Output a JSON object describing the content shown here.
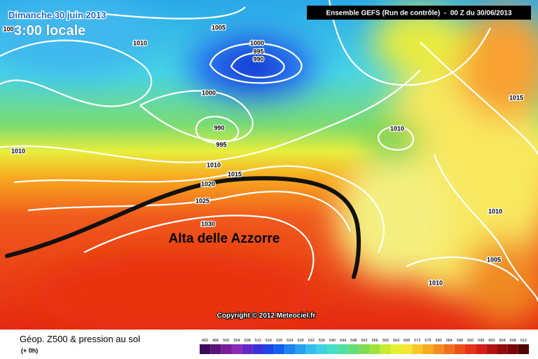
{
  "header": {
    "date": "Dimanche 30 juin 2013",
    "time": "3:00 locale",
    "model": "Ensemble GEFS (Run de contrôle)  -  00 Z du 30/06/2013"
  },
  "isobars": [
    "100",
    "1005",
    "1010",
    "1000",
    "995",
    "990",
    "1000",
    "990",
    "995",
    "1010",
    "1010",
    "1010",
    "1015",
    "1020",
    "1025",
    "1030",
    "1010",
    "1015",
    "1010",
    "1005"
  ],
  "annotation": "Alta delle Azzorre",
  "copyright": "Copyright © 2012 Meteociel.fr",
  "footer": {
    "title": "Géop. Z500 & pression au sol",
    "step": "(+ 0h)"
  },
  "scale": [
    "492",
    "496",
    "500",
    "504",
    "508",
    "512",
    "516",
    "520",
    "524",
    "528",
    "532",
    "536",
    "540",
    "544",
    "548",
    "552",
    "556",
    "560",
    "564",
    "568",
    "572",
    "576",
    "580",
    "584",
    "588",
    "592",
    "596",
    "600",
    "604",
    "608",
    "612"
  ]
}
